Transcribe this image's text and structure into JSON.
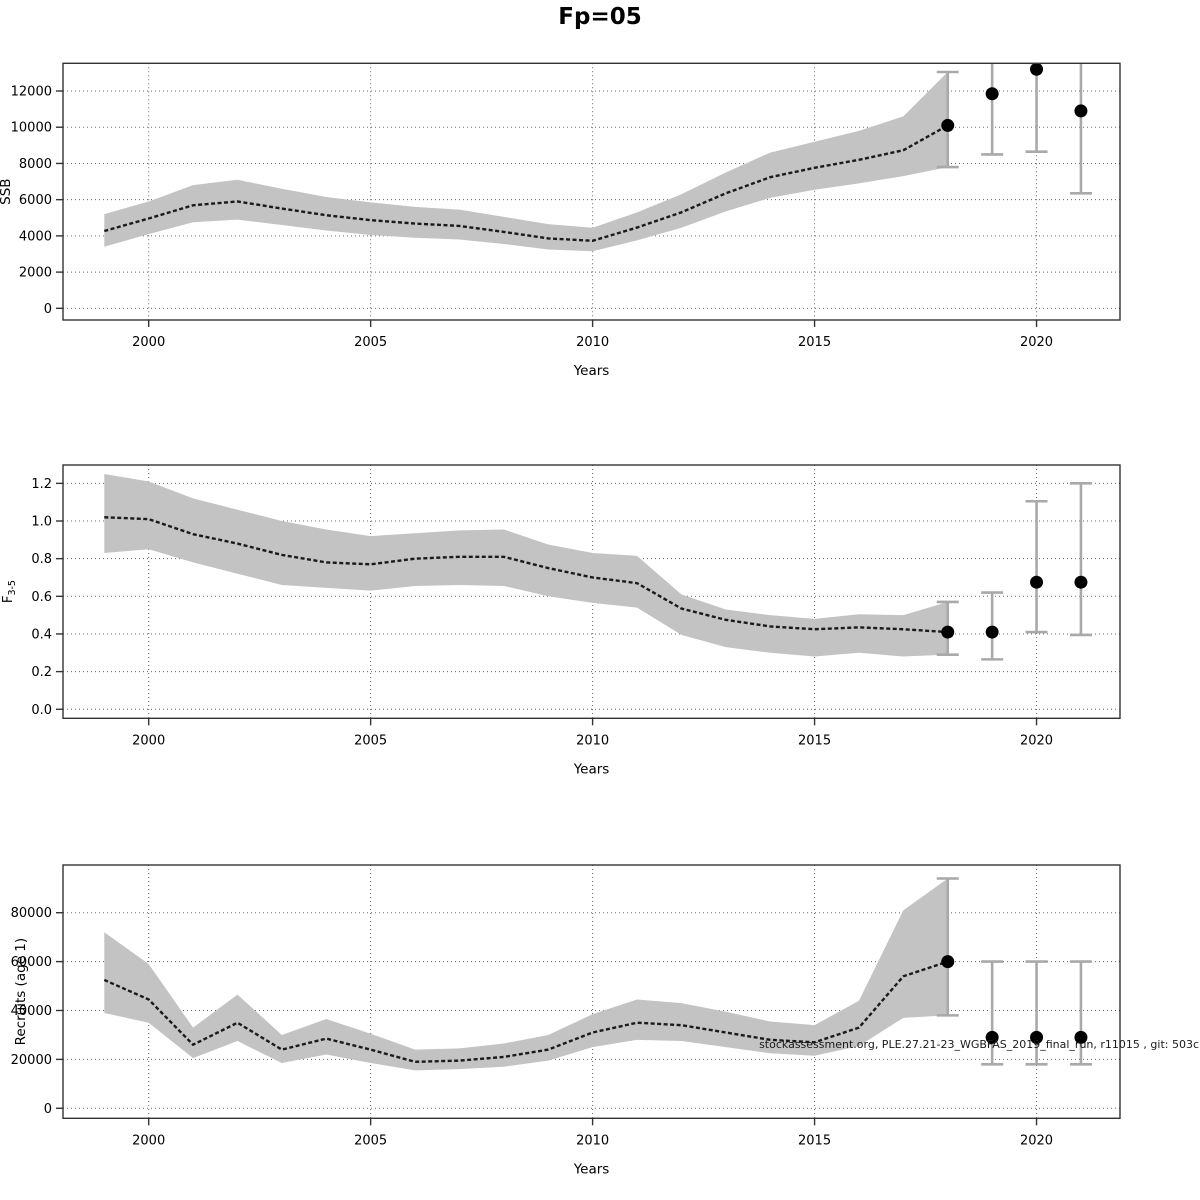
{
  "title": "Fp=05",
  "watermark": "stockassessment.org, PLE.27.21-23_WGBFAS_2019_final_run, r11015 , git: 503c",
  "colors": {
    "band": "#c3c3c3",
    "estimate_line": "#1a1a1a",
    "error_bar": "#a9a9a9",
    "point": "#000000",
    "grid": "#666666",
    "frame": "#333333"
  },
  "chart_data": [
    {
      "type": "line",
      "name": "ssb",
      "ylabel": "SSB",
      "xlabel": "Years",
      "x": [
        1999,
        2000,
        2001,
        2002,
        2003,
        2004,
        2005,
        2006,
        2007,
        2008,
        2009,
        2010,
        2011,
        2012,
        2013,
        2014,
        2015,
        2016,
        2017,
        2018
      ],
      "series": [
        {
          "name": "estimate",
          "values": [
            4270,
            4960,
            5690,
            5900,
            5510,
            5140,
            4870,
            4680,
            4550,
            4220,
            3860,
            3730,
            4460,
            5300,
            6350,
            7240,
            7760,
            8200,
            8730,
            10100
          ]
        }
      ],
      "band_lower": [
        3400,
        4100,
        4750,
        4900,
        4600,
        4300,
        4050,
        3900,
        3800,
        3550,
        3250,
        3150,
        3750,
        4450,
        5350,
        6100,
        6550,
        6900,
        7300,
        7800
      ],
      "band_upper": [
        5200,
        5900,
        6800,
        7100,
        6600,
        6150,
        5850,
        5600,
        5450,
        5050,
        4650,
        4450,
        5300,
        6300,
        7500,
        8600,
        9200,
        9800,
        10600,
        13050
      ],
      "forecast_points": [
        {
          "year": 2018,
          "value": 10100,
          "lo": 7800,
          "hi": 13050,
          "cap_top": true,
          "cap_bottom": true
        },
        {
          "year": 2019,
          "value": 11850,
          "lo": 8500,
          "hi": 13530,
          "cap_top": false,
          "cap_bottom": true
        },
        {
          "year": 2020,
          "value": 13200,
          "lo": 8650,
          "hi": 13530,
          "cap_top": false,
          "cap_bottom": true
        },
        {
          "year": 2021,
          "value": 10900,
          "lo": 6350,
          "hi": 13530,
          "cap_top": false,
          "cap_bottom": true
        }
      ],
      "yticks": [
        0,
        2000,
        4000,
        6000,
        8000,
        10000,
        12000
      ],
      "ytick_labels": [
        "0",
        "2000",
        "4000",
        "6000",
        "8000",
        "10000",
        "12000"
      ],
      "xticks": [
        2000,
        2005,
        2010,
        2015,
        2020
      ],
      "xtick_labels": [
        "2000",
        "2005",
        "2010",
        "2015",
        "2020"
      ],
      "ylim": [
        -645,
        13530
      ],
      "xlim": [
        1998.07,
        2021.88
      ],
      "grid": true,
      "legend": "none"
    },
    {
      "type": "line",
      "name": "f35",
      "ylabel": "F",
      "ylabel_sub": "3-5",
      "xlabel": "Years",
      "x": [
        1999,
        2000,
        2001,
        2002,
        2003,
        2004,
        2005,
        2006,
        2007,
        2008,
        2009,
        2010,
        2011,
        2012,
        2013,
        2014,
        2015,
        2016,
        2017,
        2018
      ],
      "series": [
        {
          "name": "estimate",
          "values": [
            1.02,
            1.01,
            0.93,
            0.88,
            0.82,
            0.78,
            0.77,
            0.8,
            0.81,
            0.81,
            0.75,
            0.7,
            0.67,
            0.535,
            0.475,
            0.44,
            0.425,
            0.435,
            0.425,
            0.41
          ]
        }
      ],
      "band_lower": [
        0.83,
        0.85,
        0.78,
        0.72,
        0.66,
        0.645,
        0.63,
        0.655,
        0.66,
        0.655,
        0.6,
        0.565,
        0.54,
        0.395,
        0.33,
        0.3,
        0.28,
        0.3,
        0.28,
        0.29
      ],
      "band_upper": [
        1.25,
        1.21,
        1.12,
        1.06,
        1.0,
        0.955,
        0.92,
        0.935,
        0.95,
        0.955,
        0.875,
        0.83,
        0.815,
        0.61,
        0.53,
        0.5,
        0.48,
        0.505,
        0.5,
        0.57
      ],
      "forecast_points": [
        {
          "year": 2018,
          "value": 0.41,
          "lo": 0.29,
          "hi": 0.57,
          "cap_top": true,
          "cap_bottom": true
        },
        {
          "year": 2019,
          "value": 0.41,
          "lo": 0.265,
          "hi": 0.62,
          "cap_top": true,
          "cap_bottom": true
        },
        {
          "year": 2020,
          "value": 0.675,
          "lo": 0.41,
          "hi": 1.105,
          "cap_top": true,
          "cap_bottom": true
        },
        {
          "year": 2021,
          "value": 0.675,
          "lo": 0.395,
          "hi": 1.2,
          "cap_top": true,
          "cap_bottom": true
        }
      ],
      "yticks": [
        0.0,
        0.2,
        0.4,
        0.6,
        0.8,
        1.0,
        1.2
      ],
      "ytick_labels": [
        "0.0",
        "0.2",
        "0.4",
        "0.6",
        "0.8",
        "1.0",
        "1.2"
      ],
      "xticks": [
        2000,
        2005,
        2010,
        2015,
        2020
      ],
      "xtick_labels": [
        "2000",
        "2005",
        "2010",
        "2015",
        "2020"
      ],
      "ylim": [
        -0.048,
        1.2975
      ],
      "xlim": [
        1998.07,
        2021.88
      ],
      "grid": true,
      "legend": "none"
    },
    {
      "type": "line",
      "name": "recruits",
      "ylabel": "Recruits (age 1)",
      "xlabel": "Years",
      "x": [
        1999,
        2000,
        2001,
        2002,
        2003,
        2004,
        2005,
        2006,
        2007,
        2008,
        2009,
        2010,
        2011,
        2012,
        2013,
        2014,
        2015,
        2016,
        2017,
        2018
      ],
      "series": [
        {
          "name": "estimate",
          "values": [
            52500,
            44500,
            26000,
            35000,
            24000,
            28500,
            24000,
            19000,
            19500,
            21000,
            24000,
            31000,
            35000,
            34000,
            31000,
            28000,
            27000,
            33000,
            54000,
            60000
          ]
        }
      ],
      "band_lower": [
        39000,
        35000,
        20500,
        27500,
        18500,
        22000,
        18500,
        15500,
        16000,
        17000,
        19500,
        25000,
        28000,
        27500,
        25000,
        22500,
        21500,
        25500,
        37000,
        38000
      ],
      "band_upper": [
        72000,
        59000,
        33000,
        46500,
        30000,
        36500,
        30500,
        24000,
        24500,
        26500,
        30000,
        38500,
        44500,
        43000,
        39500,
        35500,
        34000,
        44000,
        81000,
        94000
      ],
      "forecast_points": [
        {
          "year": 2018,
          "value": 60000,
          "lo": 38000,
          "hi": 94000,
          "cap_top": true,
          "cap_bottom": true
        },
        {
          "year": 2019,
          "value": 29000,
          "lo": 18000,
          "hi": 60000,
          "cap_top": true,
          "cap_bottom": true
        },
        {
          "year": 2020,
          "value": 29000,
          "lo": 18000,
          "hi": 60000,
          "cap_top": true,
          "cap_bottom": true
        },
        {
          "year": 2021,
          "value": 29000,
          "lo": 18000,
          "hi": 60000,
          "cap_top": true,
          "cap_bottom": true
        }
      ],
      "yticks": [
        0,
        20000,
        40000,
        60000,
        80000
      ],
      "ytick_labels": [
        "0",
        "20000",
        "40000",
        "60000",
        "80000"
      ],
      "xticks": [
        2000,
        2005,
        2010,
        2015,
        2020
      ],
      "xtick_labels": [
        "2000",
        "2005",
        "2010",
        "2015",
        "2020"
      ],
      "ylim": [
        -4100,
        99520
      ],
      "xlim": [
        1998.07,
        2021.88
      ],
      "grid": true,
      "legend": "none"
    }
  ]
}
